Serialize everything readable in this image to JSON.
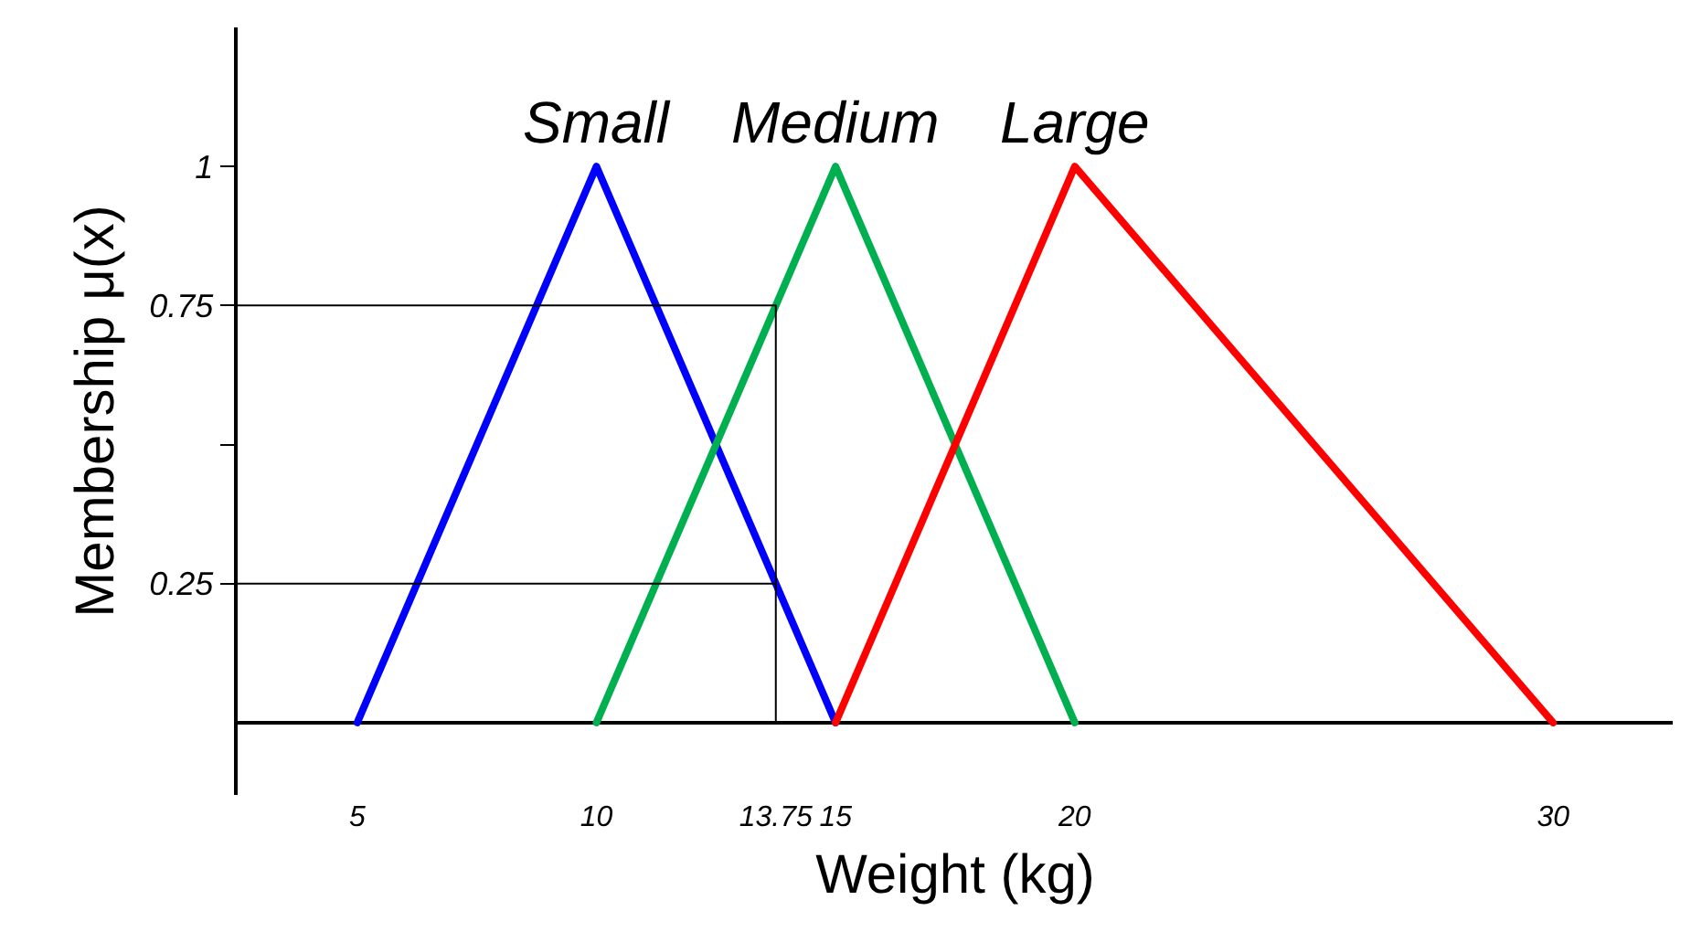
{
  "chart_data": {
    "type": "line",
    "xlabel": "Weight (kg)",
    "ylabel": "Membership μ(x)",
    "xlim": [
      2.5,
      32.5
    ],
    "ylim": [
      -0.13,
      1.25
    ],
    "xticks": [
      5,
      10,
      13.75,
      15,
      20,
      30
    ],
    "yticks": [
      0.25,
      {
        "value": 0.5,
        "label": null
      },
      0.75,
      1
    ],
    "grid": false,
    "legend": false,
    "marker": "none",
    "line_style": "solid",
    "series": [
      {
        "name": "Small",
        "color": "#0000ff",
        "x": [
          5,
          10,
          15
        ],
        "values": [
          0,
          1,
          0
        ]
      },
      {
        "name": "Medium",
        "color": "#00b050",
        "x": [
          10,
          15,
          20
        ],
        "values": [
          0,
          1,
          0
        ]
      },
      {
        "name": "Large",
        "color": "#ff0000",
        "x": [
          15,
          20,
          30
        ],
        "values": [
          0,
          1,
          0
        ]
      },
      {
        "color": "#000000",
        "x": [
          2.5,
          13.75,
          13.75
        ],
        "values": [
          0.75,
          0.75,
          0
        ]
      },
      {
        "color": "#000000",
        "x": [
          2.5,
          13.75
        ],
        "values": [
          0.25,
          0.25
        ]
      }
    ]
  }
}
